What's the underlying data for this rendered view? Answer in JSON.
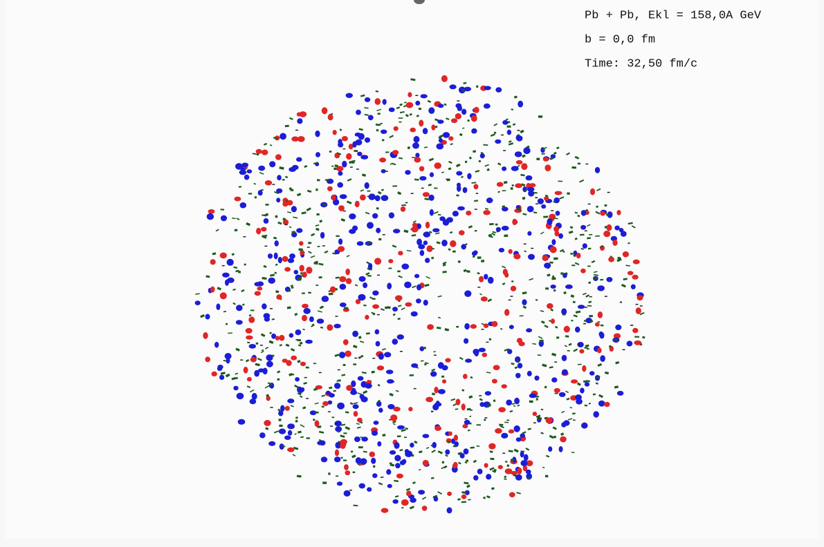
{
  "overlay": {
    "lines": [
      "Pb + Pb, Ekl = 158,0A GeV",
      "b = 0,0 fm",
      "Time: 32,50 fm/c"
    ]
  }
}
